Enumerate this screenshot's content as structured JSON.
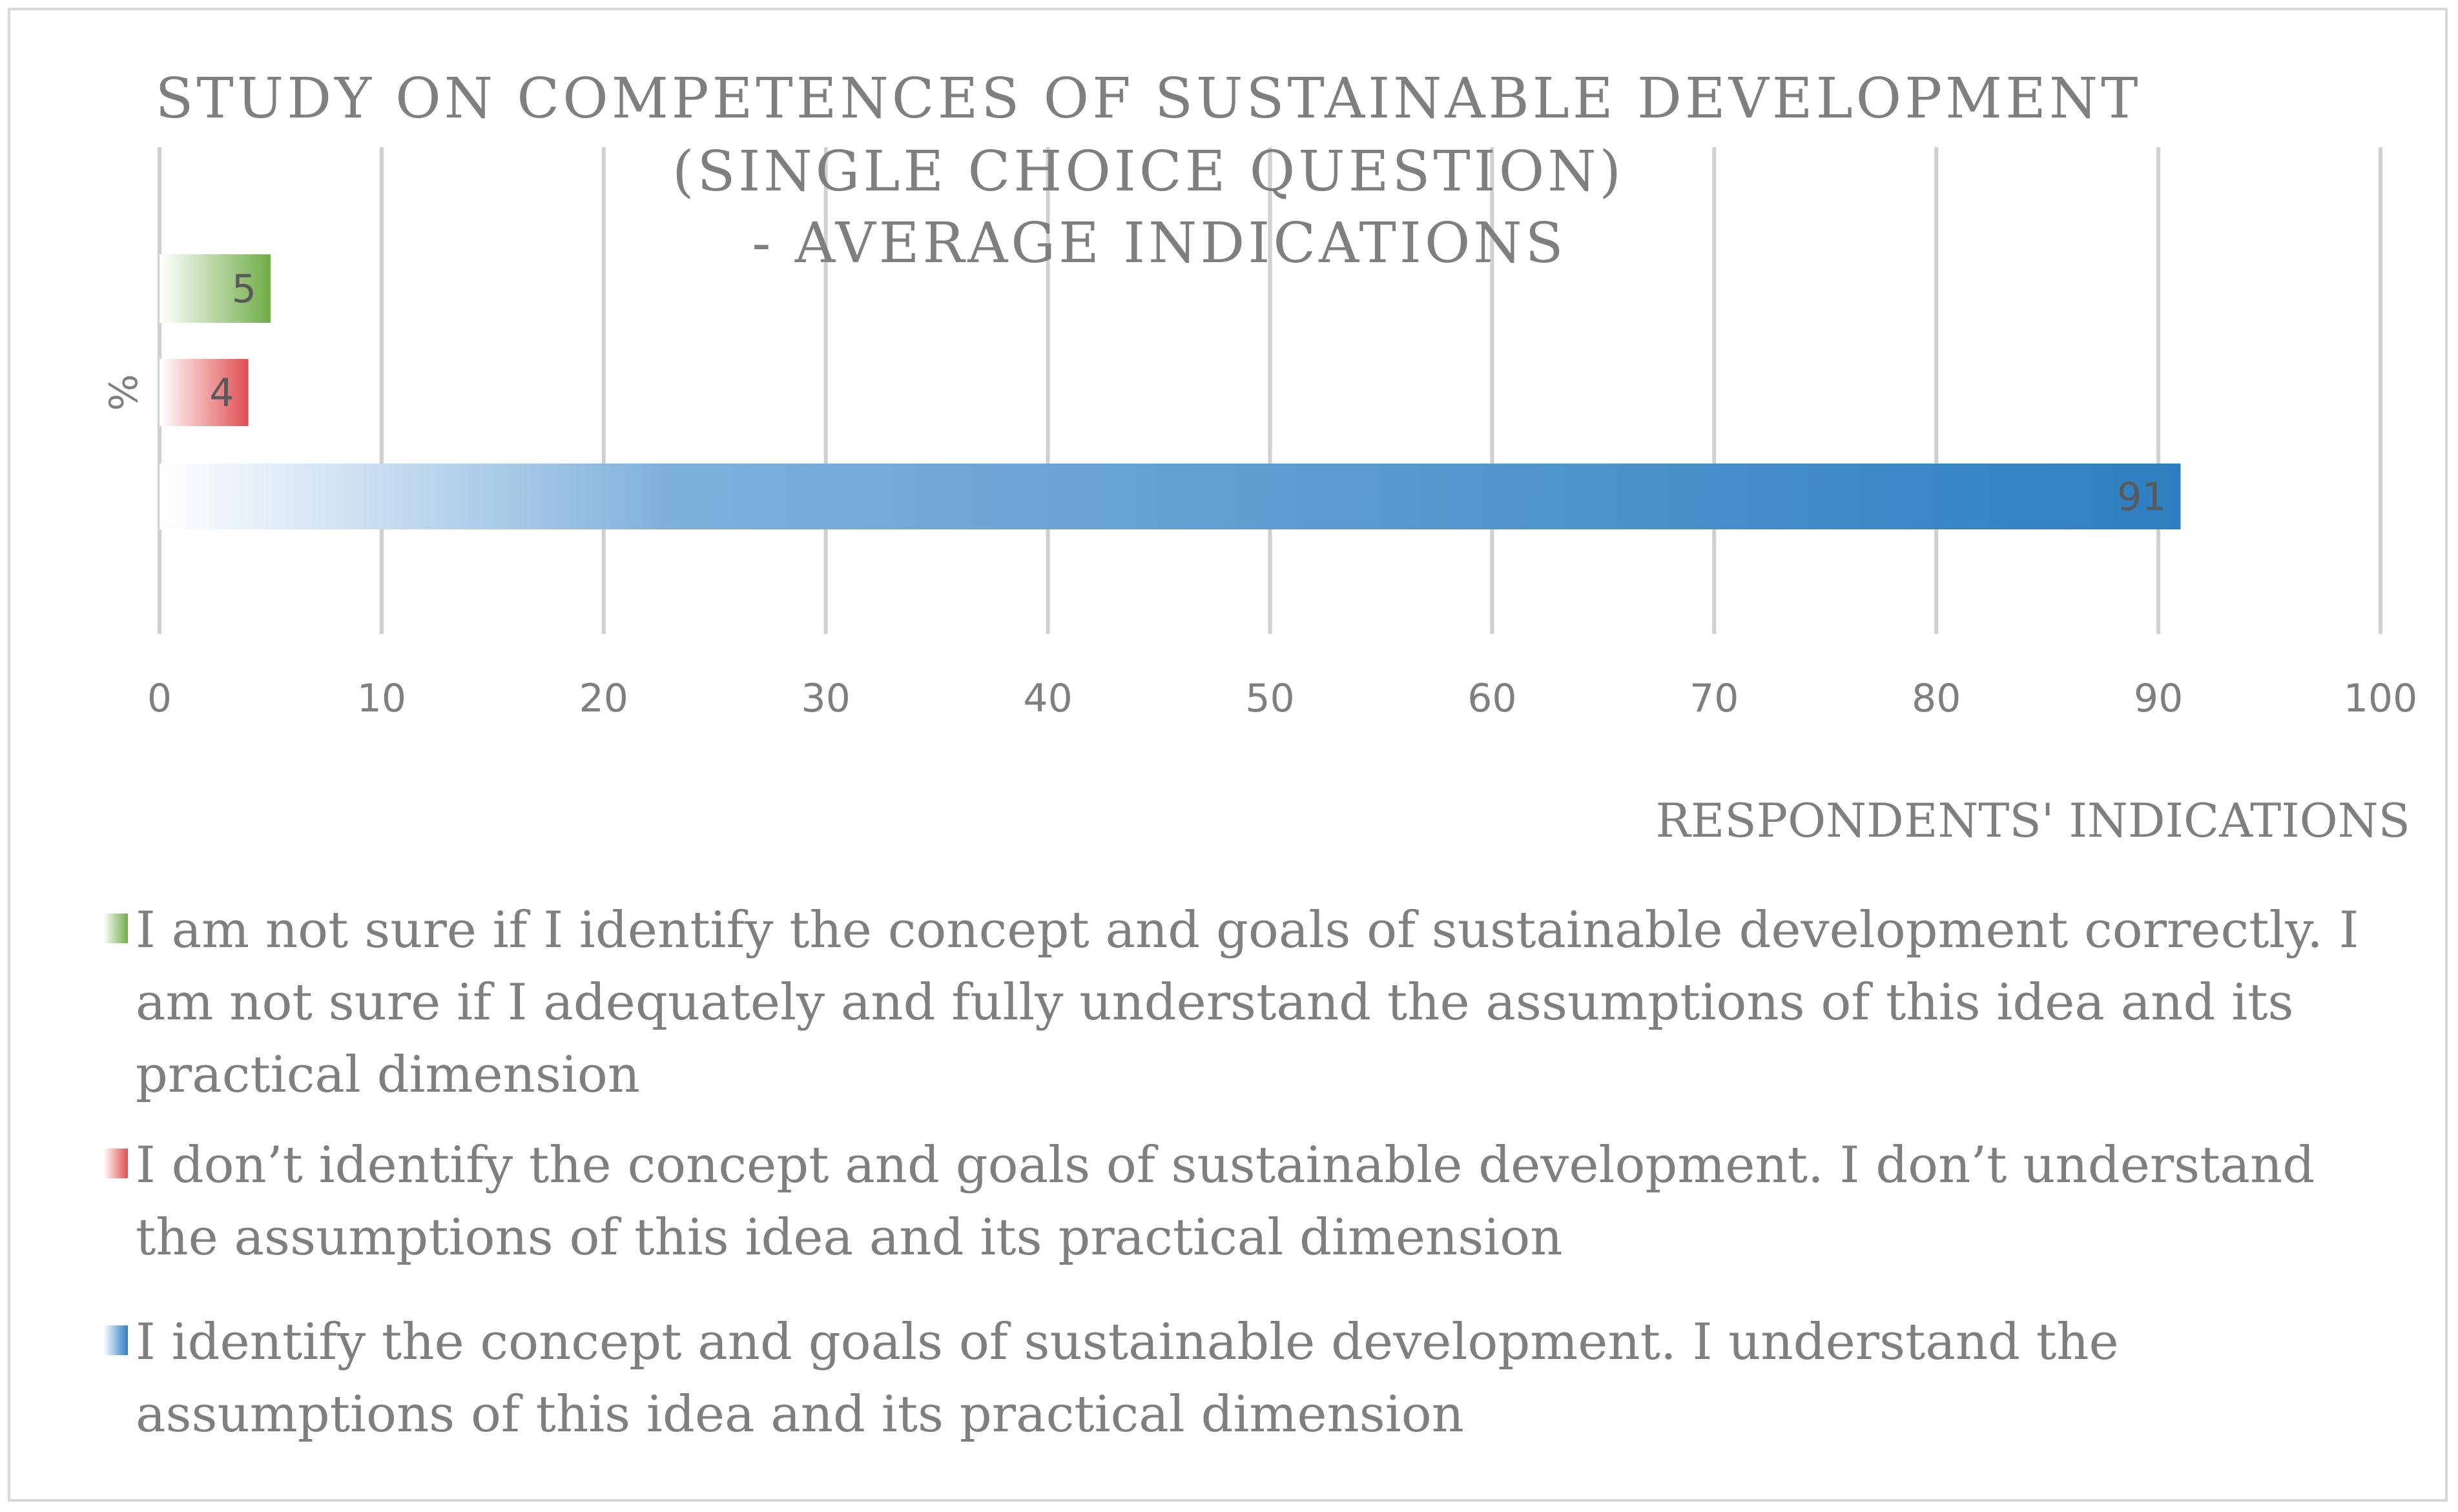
{
  "chart_data": {
    "type": "bar",
    "orientation": "horizontal",
    "title_lines": [
      "STUDY ON COMPETENCES OF SUSTAINABLE DEVELOPMENT",
      "(SINGLE CHOICE QUESTION)",
      "- AVERAGE INDICATIONS"
    ],
    "ylabel": "%",
    "xlabel": "RESPONDENTS' INDICATIONS",
    "xlim": [
      0,
      100
    ],
    "x_ticks": [
      0,
      10,
      20,
      30,
      40,
      50,
      60,
      70,
      80,
      90,
      100
    ],
    "grid": "vertical",
    "legend_position": "bottom",
    "series": [
      {
        "name": "I am not sure if I identify the concept and goals of sustainable development correctly. I am not sure if I adequately and fully understand the assumptions of this idea and its practical dimension",
        "value": 5,
        "label": "5",
        "color": "#70ad47"
      },
      {
        "name": "I don’t identify the concept and goals of sustainable development. I don’t understand the assumptions of this idea and its practical dimension",
        "value": 4,
        "label": "4",
        "color": "#e04f52"
      },
      {
        "name": "I identify the concept and goals of sustainable development. I understand the assumptions of this idea and its practical dimension",
        "value": 91,
        "label": "91",
        "color": "#2e7fc1"
      }
    ]
  }
}
